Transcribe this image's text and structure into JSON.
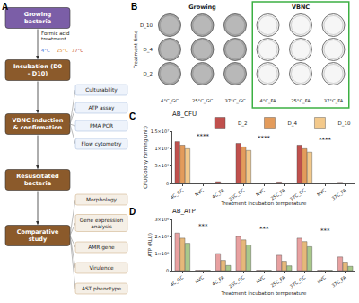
{
  "panel_labels": [
    "A",
    "B",
    "C",
    "D"
  ],
  "workflow": {
    "steps": [
      "Growing bacteria",
      "Incubation (D0 - D10)",
      "VBNC induction & confirmation",
      "Resuscitated bacteria",
      "Comparative study"
    ],
    "treatment": {
      "label": "Formic acid treatment",
      "temperatures": [
        "4°C",
        "25°C",
        "37°C"
      ]
    },
    "assays": [
      "Culturability",
      "ATP assay",
      "PMA PCR",
      "Flow cytometry"
    ],
    "analyses": [
      "Morphology",
      "Gene expression analysis",
      "AMR gene",
      "Virulence",
      "AST phenotype"
    ]
  },
  "plates": {
    "row_axis_label": "Treatment time",
    "rows": [
      "D_10",
      "D_4",
      "D_2"
    ],
    "columns": [
      "4°C_GC",
      "25°C_GC",
      "37°C_GC",
      "4°C_FA",
      "25°C_FA",
      "37°C_FA"
    ],
    "groups": [
      {
        "label": "Growing",
        "columns": 3,
        "growth": true
      },
      {
        "label": "VBNC",
        "columns": 3,
        "growth": false
      }
    ]
  },
  "chart_data": [
    {
      "type": "bar",
      "title": "AB_CFU",
      "x_label": "Treatment incubation temperature",
      "y_label": "CFU(Colony forming unit)",
      "categories": [
        "4C_GC",
        "NVC",
        "4C_FA",
        "25C_GC",
        "NVC",
        "25C_FA",
        "37C_GC",
        "NVC",
        "37C_FA"
      ],
      "series": [
        {
          "name": "D_2",
          "color": "#c0504d",
          "values": [
            12000000,
            0,
            500000,
            11500000,
            0,
            400000,
            11000000,
            0,
            300000
          ]
        },
        {
          "name": "D_4",
          "color": "#e39b5b",
          "values": [
            11000000,
            0,
            0,
            10500000,
            0,
            0,
            10000000,
            0,
            0
          ]
        },
        {
          "name": "D_10",
          "color": "#f3c98b",
          "values": [
            10000000,
            0,
            0,
            9500000,
            0,
            0,
            9000000,
            0,
            0
          ]
        }
      ],
      "ylim": [
        0,
        15000000
      ],
      "yticks": [
        0,
        {
          "value": 5000000,
          "label": "5×10⁶"
        },
        {
          "value": 10000000,
          "label": "1×10⁷"
        },
        {
          "value": 15000000,
          "label": "1.5×10⁷"
        }
      ],
      "annotations": [
        {
          "x": 1,
          "y": 13500000,
          "text": "****"
        },
        {
          "x": 4,
          "y": 13000000,
          "text": "****"
        },
        {
          "x": 7,
          "y": 12500000,
          "text": "****"
        }
      ],
      "legend": "top-right",
      "grid": false
    },
    {
      "type": "bar",
      "title": "AB_ATP",
      "x_label": "Treatment incubation temperature",
      "y_label": "ATP (RLU)",
      "categories": [
        "4C_GC",
        "NVC",
        "4C_FA",
        "25C_GC",
        "NVC",
        "25C_FA",
        "37C_GC",
        "NVC",
        "37C_FA"
      ],
      "series": [
        {
          "name": "D_2",
          "color": "#e8a0a0",
          "values": [
            2200000,
            20000,
            1000000,
            2000000,
            20000,
            900000,
            1900000,
            20000,
            800000
          ]
        },
        {
          "name": "D_4",
          "color": "#e6b87a",
          "values": [
            1900000,
            20000,
            600000,
            1800000,
            20000,
            550000,
            1700000,
            20000,
            500000
          ]
        },
        {
          "name": "D_10",
          "color": "#a8c88a",
          "values": [
            1600000,
            20000,
            300000,
            1500000,
            20000,
            280000,
            1400000,
            20000,
            250000
          ]
        }
      ],
      "ylim": [
        0,
        3000000
      ],
      "yticks": [
        0,
        {
          "value": 1000000,
          "label": "1×10⁶"
        },
        {
          "value": 2000000,
          "label": "2×10⁶"
        },
        {
          "value": 3000000,
          "label": "3×10⁶"
        }
      ],
      "annotations": [
        {
          "x": 1,
          "y": 2600000,
          "text": "***"
        },
        {
          "x": 4,
          "y": 2400000,
          "text": "***"
        },
        {
          "x": 7,
          "y": 2300000,
          "text": "***"
        }
      ],
      "grid": false
    }
  ]
}
